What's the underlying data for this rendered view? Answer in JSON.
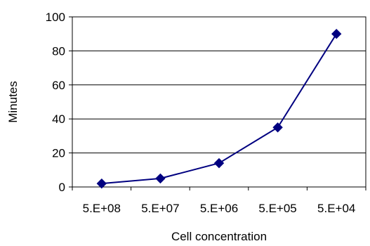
{
  "chart_data": {
    "type": "line",
    "categories": [
      "5.E+08",
      "5.E+07",
      "5.E+06",
      "5.E+05",
      "5.E+04"
    ],
    "series": [
      {
        "values": [
          2,
          5,
          14,
          35,
          90
        ]
      }
    ],
    "xlabel": "Cell concentration",
    "ylabel": "Minutes",
    "ylim": [
      0,
      100
    ],
    "yticks": [
      0,
      20,
      40,
      60,
      80,
      100
    ],
    "grid": "horizontal",
    "marker": "diamond",
    "colors": {
      "series": "#000080",
      "grid": "#000000",
      "axis": "#000000"
    }
  }
}
